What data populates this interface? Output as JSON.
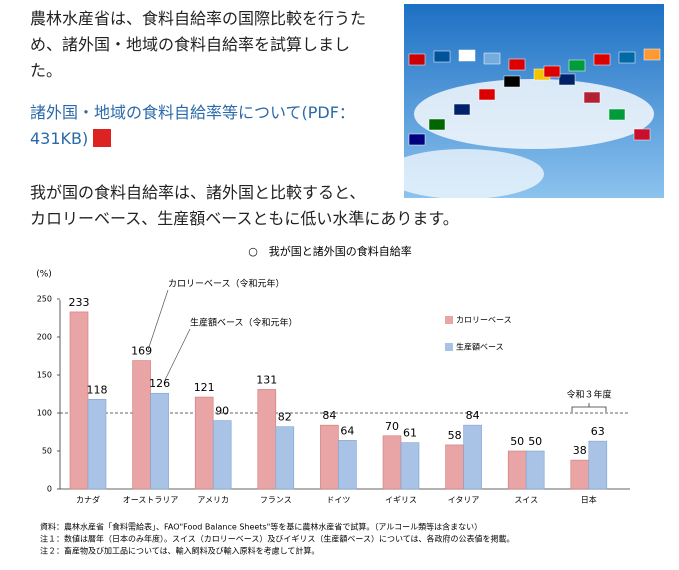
{
  "page": {
    "intro": "農林水産省は、食料自給率の国際比較を行うため、諸外国・地域の食料自給率を試算しました。",
    "link": "諸外国・地域の食料自給率等について(PDF：431KB)",
    "summary": [
      "我が国の食料自給率は、諸外国と比較すると、",
      "カロリーベース、生産額ベースともに低い水準にあります。"
    ],
    "notes": [
      "資料：農林水産省「食料需給表」、FAO\"Food Balance Sheets\"等を基に農林水産省で試算。（アルコール類等は含まない）",
      "注１：数値は暦年（日本のみ年度）。スイス（カロリーベース）及びイギリス（生産額ベース）については、各政府の公表値を掲載。",
      "注２：畜産物及び加工品については、輸入飼料及び輸入原料を考慮して計算。"
    ]
  },
  "chart_data": {
    "type": "bar",
    "title": "○　我が国と諸外国の食料自給率",
    "y_label": "(%)",
    "categories": [
      "カナダ",
      "オーストラリア",
      "アメリカ",
      "フランス",
      "ドイツ",
      "イギリス",
      "イタリア",
      "スイス",
      "日本"
    ],
    "series": [
      {
        "name": "カロリーベース",
        "color": "#e9a5a5",
        "values": [
          233,
          169,
          121,
          131,
          84,
          70,
          58,
          50,
          38
        ]
      },
      {
        "name": "生産額ベース",
        "color": "#a8c3e6",
        "values": [
          118,
          126,
          90,
          82,
          64,
          61,
          84,
          50,
          63
        ]
      }
    ],
    "ylim": [
      0,
      250
    ],
    "yticks": [
      0,
      50,
      100,
      150,
      200,
      250
    ],
    "annotations": [
      "カロリーベース（令和元年）",
      "生産額ベース（令和元年）",
      "令和３年度"
    ]
  }
}
